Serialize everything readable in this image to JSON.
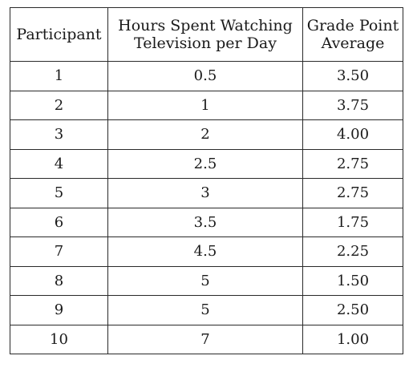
{
  "chart_data": {
    "type": "table",
    "columns": [
      "Participant",
      "Hours Spent Watching Television per Day",
      "Grade Point Average"
    ],
    "rows": [
      [
        "1",
        "0.5",
        "3.50"
      ],
      [
        "2",
        "1",
        "3.75"
      ],
      [
        "3",
        "2",
        "4.00"
      ],
      [
        "4",
        "2.5",
        "2.75"
      ],
      [
        "5",
        "3",
        "2.75"
      ],
      [
        "6",
        "3.5",
        "1.75"
      ],
      [
        "7",
        "4.5",
        "2.25"
      ],
      [
        "8",
        "5",
        "1.50"
      ],
      [
        "9",
        "5",
        "2.50"
      ],
      [
        "10",
        "7",
        "1.00"
      ]
    ]
  },
  "header": {
    "col1": "Participant",
    "col2_line1": "Hours Spent Watching",
    "col2_line2": "Television per Day",
    "col3_line1": "Grade Point",
    "col3_line2": "Average"
  }
}
